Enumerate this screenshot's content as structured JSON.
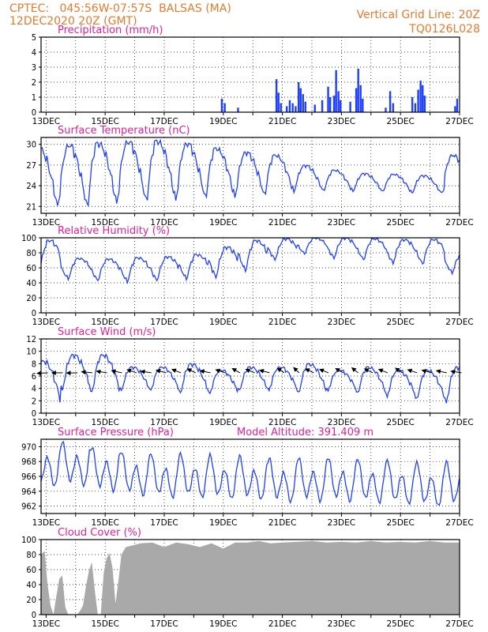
{
  "header": {
    "line1_left": "CPTEC:   045:56W-07:57S  BALSAS (MA)",
    "line2_left": "12DEC2020 20Z (GMT)",
    "line1_right": "Vertical Grid Line: 20Z",
    "line2_right": "TQ0126L028"
  },
  "colors": {
    "header": "#e8792b",
    "titles": "#e0209a",
    "series": "#1f3fff",
    "cloud": "#a9a9a9",
    "grid": "#000000"
  },
  "x_axis_labels": [
    "13DEC",
    "15DEC",
    "17DEC",
    "19DEC",
    "21DEC",
    "23DEC",
    "25DEC",
    "27DEC"
  ],
  "panels": [
    {
      "key": "precip",
      "title": "Precipitation (mm/h)",
      "title2": ""
    },
    {
      "key": "temp",
      "title": "Surface Temperature (nC)",
      "title2": ""
    },
    {
      "key": "rh",
      "title": "Relative Humidity (%)",
      "title2": ""
    },
    {
      "key": "wind",
      "title": "Surface Wind (m/s)",
      "title2": ""
    },
    {
      "key": "pres",
      "title": "Surface Pressure (hPa)",
      "title2": "Model Altitude: 391.409  m"
    },
    {
      "key": "cloud",
      "title": "Cloud Cover (%)",
      "title2": ""
    }
  ],
  "chart_data": [
    {
      "type": "bar",
      "title": "Precipitation (mm/h)",
      "ylim": [
        0,
        5
      ],
      "yticks": [
        0,
        1,
        2,
        3,
        4,
        5
      ],
      "x_unit": "day_of_December_2020",
      "bars": [
        [
          18.95,
          0.9
        ],
        [
          19.05,
          0.6
        ],
        [
          19.5,
          0.3
        ],
        [
          20.8,
          2.2
        ],
        [
          20.87,
          1.3
        ],
        [
          20.95,
          0.6
        ],
        [
          21.15,
          0.4
        ],
        [
          21.25,
          0.8
        ],
        [
          21.35,
          0.6
        ],
        [
          21.45,
          0.4
        ],
        [
          21.55,
          2.0
        ],
        [
          21.62,
          1.6
        ],
        [
          21.7,
          1.2
        ],
        [
          21.78,
          0.7
        ],
        [
          22.1,
          0.5
        ],
        [
          22.35,
          0.8
        ],
        [
          22.55,
          1.7
        ],
        [
          22.62,
          1.0
        ],
        [
          22.75,
          1.1
        ],
        [
          22.82,
          2.8
        ],
        [
          22.9,
          1.4
        ],
        [
          22.97,
          0.8
        ],
        [
          23.3,
          0.7
        ],
        [
          23.5,
          1.6
        ],
        [
          23.57,
          2.9
        ],
        [
          23.65,
          1.8
        ],
        [
          23.72,
          0.9
        ],
        [
          24.5,
          0.3
        ],
        [
          24.65,
          1.4
        ],
        [
          24.75,
          0.6
        ],
        [
          25.4,
          1.0
        ],
        [
          25.5,
          0.6
        ],
        [
          25.6,
          1.5
        ],
        [
          25.68,
          2.1
        ],
        [
          25.75,
          1.8
        ],
        [
          25.82,
          1.1
        ],
        [
          26.85,
          0.4
        ],
        [
          26.92,
          0.9
        ]
      ]
    },
    {
      "type": "line",
      "title": "Surface Temperature (nC)",
      "ylim": [
        20,
        31
      ],
      "yticks": [
        21,
        24,
        27,
        30
      ],
      "x_unit": "day_of_December_2020",
      "daily_cycle": {
        "start": 12.83,
        "end": 27.0,
        "phase_of_min": 0.4,
        "minima": [
          20.6,
          20.5,
          21.0,
          21.3,
          21.5,
          21.8,
          22.0,
          22.3,
          22.8,
          23.0,
          23.0,
          23.0,
          22.8,
          22.8,
          23.0
        ],
        "maxima": [
          29.5,
          30.0,
          30.3,
          30.5,
          30.6,
          30.2,
          29.5,
          28.9,
          28.5,
          27.0,
          26.3,
          25.8,
          25.7,
          25.5,
          28.5
        ]
      }
    },
    {
      "type": "line",
      "title": "Relative Humidity (%)",
      "ylim": [
        0,
        100
      ],
      "yticks": [
        0,
        20,
        40,
        60,
        80,
        100
      ],
      "x_unit": "day_of_December_2020",
      "daily_cycle": {
        "start": 12.83,
        "end": 27.0,
        "phase_of_min": 0.75,
        "minima": [
          48,
          44,
          42,
          40,
          42,
          44,
          46,
          55,
          70,
          78,
          72,
          70,
          65,
          64,
          52
        ],
        "maxima": [
          97,
          73,
          72,
          74,
          75,
          78,
          88,
          97,
          99,
          100,
          100,
          99,
          98,
          98,
          80
        ]
      }
    },
    {
      "type": "line",
      "title": "Surface Wind (m/s)",
      "ylim": [
        0,
        12
      ],
      "yticks": [
        0,
        2,
        4,
        6,
        8,
        10,
        12
      ],
      "x_unit": "day_of_December_2020",
      "daily_cycle": {
        "start": 12.83,
        "end": 27.0,
        "phase_of_min": 0.55,
        "minima": [
          1.0,
          3.5,
          3.0,
          3.5,
          3.5,
          3.0,
          3.0,
          3.5,
          3.5,
          3.0,
          3.5,
          3.0,
          2.5,
          2.0,
          1.5
        ],
        "maxima": [
          8.5,
          9.5,
          9.5,
          7.5,
          7.5,
          8.0,
          7.0,
          7.5,
          7.5,
          8.0,
          7.0,
          7.5,
          7.0,
          7.0,
          7.5
        ]
      }
    },
    {
      "type": "line",
      "title": "Surface Pressure (hPa)",
      "ylim": [
        961,
        971
      ],
      "yticks": [
        962,
        964,
        966,
        968,
        970
      ],
      "x_unit": "day_of_December_2020",
      "semi_diurnal": {
        "start": 12.83,
        "end": 27.0,
        "mean": 965.5,
        "amplitude": 3.0,
        "trend": [
          1.8,
          1.9,
          1.2,
          0.6,
          0.3,
          0.3,
          0.1,
          0.0,
          -0.3,
          -0.2,
          -0.2,
          -0.4,
          -0.6,
          -0.9,
          -0.8
        ]
      }
    },
    {
      "type": "area",
      "title": "Cloud Cover (%)",
      "ylim": [
        0,
        100
      ],
      "yticks": [
        0,
        20,
        40,
        60,
        80,
        100
      ],
      "x_unit": "day_of_December_2020",
      "x": [
        12.83,
        12.95,
        13.05,
        13.15,
        13.25,
        13.35,
        13.45,
        13.55,
        13.65,
        13.75,
        13.85,
        13.95,
        14.05,
        14.15,
        14.25,
        14.35,
        14.45,
        14.55,
        14.65,
        14.75,
        14.85,
        14.95,
        15.05,
        15.15,
        15.25,
        15.35,
        15.45,
        15.55,
        15.7,
        15.9,
        16.2,
        16.6,
        17.0,
        17.4,
        17.8,
        18.2,
        18.6,
        19.0,
        19.4,
        19.8,
        20.2,
        20.6,
        21.0,
        21.5,
        22.0,
        22.5,
        23.0,
        23.5,
        24.0,
        24.5,
        25.0,
        25.5,
        26.0,
        26.5,
        27.0
      ],
      "y": [
        80,
        85,
        40,
        12,
        0,
        25,
        48,
        52,
        10,
        0,
        0,
        0,
        0,
        5,
        12,
        38,
        58,
        70,
        32,
        0,
        0,
        55,
        75,
        82,
        62,
        15,
        45,
        80,
        90,
        92,
        95,
        96,
        90,
        96,
        94,
        90,
        95,
        88,
        96,
        96,
        98,
        95,
        96,
        97,
        98,
        96,
        97,
        96,
        98,
        96,
        97,
        96,
        98,
        96,
        96
      ]
    }
  ],
  "wind_arrows": {
    "y_level": 5.5,
    "directions_deg_toward": [
      175,
      180,
      178,
      190,
      195,
      200,
      210,
      195,
      205,
      215,
      220,
      200,
      210,
      225,
      215,
      205,
      230,
      240,
      220,
      215,
      225,
      235,
      220,
      215,
      230,
      210,
      205,
      200,
      195
    ]
  }
}
